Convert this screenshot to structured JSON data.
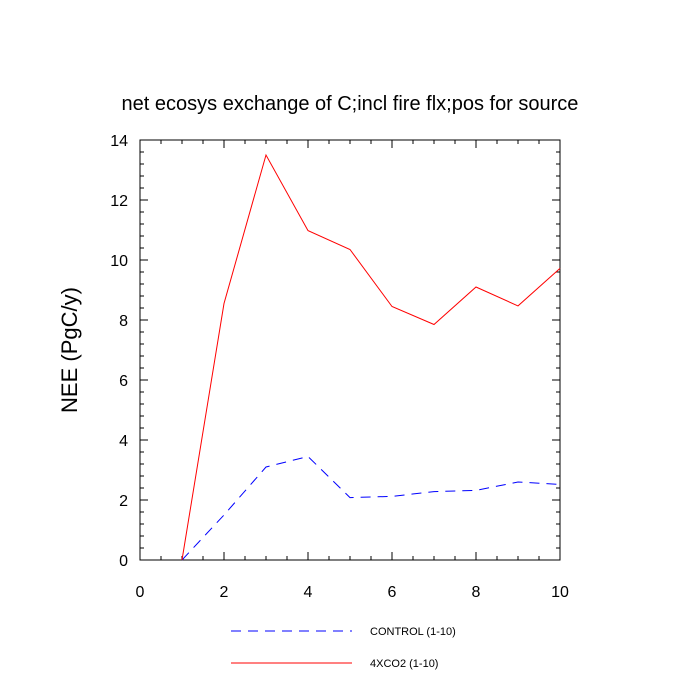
{
  "chart_data": {
    "type": "line",
    "title": "net ecosys exchange of C;incl fire flx;pos for source",
    "xlabel": "",
    "ylabel": "NEE  (PgC/y)",
    "xlim": [
      0,
      10
    ],
    "ylim": [
      0,
      14
    ],
    "x_ticks": [
      0,
      2,
      4,
      6,
      8,
      10
    ],
    "y_ticks": [
      0,
      2,
      4,
      6,
      8,
      10,
      12,
      14
    ],
    "grid": false,
    "legend_position": "bottom",
    "x": [
      1,
      2,
      3,
      4,
      5,
      6,
      7,
      8,
      9,
      10
    ],
    "series": [
      {
        "name": "CONTROL (1-10)",
        "color": "#0000ff",
        "dash": "dashed",
        "values": [
          0.0,
          1.5,
          3.1,
          3.45,
          2.08,
          2.12,
          2.28,
          2.32,
          2.6,
          2.52
        ]
      },
      {
        "name": "4XCO2 (1-10)",
        "color": "#ff0000",
        "dash": "solid",
        "values": [
          0.0,
          8.55,
          13.5,
          10.98,
          10.35,
          8.45,
          7.85,
          9.1,
          8.47,
          9.72
        ]
      }
    ]
  }
}
